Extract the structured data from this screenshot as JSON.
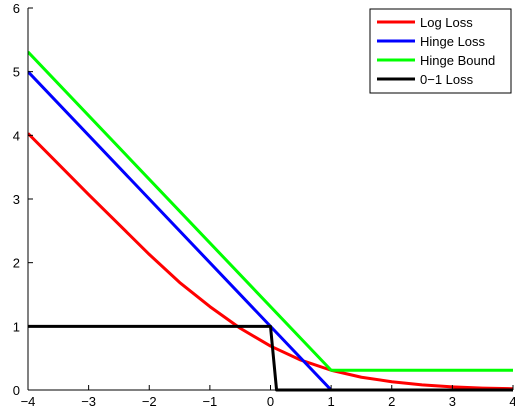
{
  "chart_data": {
    "type": "line",
    "xlim": [
      -4,
      4
    ],
    "ylim": [
      0,
      6
    ],
    "xticks": [
      -4,
      -3,
      -2,
      -1,
      0,
      1,
      2,
      3,
      4
    ],
    "yticks": [
      0,
      1,
      2,
      3,
      4,
      5,
      6
    ],
    "xtick_labels": [
      "−4",
      "−3",
      "−2",
      "−1",
      "0",
      "1",
      "2",
      "3",
      "4"
    ],
    "ytick_labels": [
      "0",
      "1",
      "2",
      "3",
      "4",
      "5",
      "6"
    ],
    "title": "",
    "xlabel": "",
    "ylabel": "",
    "grid": false,
    "legend_position": "top-right",
    "series": [
      {
        "name": "Log Loss",
        "color": "#ff0000",
        "x": [
          -4,
          -3.5,
          -3,
          -2.5,
          -2,
          -1.5,
          -1,
          -0.5,
          0,
          0.5,
          1,
          1.5,
          2,
          2.5,
          3,
          3.5,
          4
        ],
        "y": [
          4.03,
          3.55,
          3.07,
          2.6,
          2.13,
          1.69,
          1.31,
          0.97,
          0.69,
          0.47,
          0.31,
          0.2,
          0.13,
          0.08,
          0.05,
          0.03,
          0.02
        ]
      },
      {
        "name": "Hinge Loss",
        "color": "#0000ff",
        "x": [
          -4,
          1
        ],
        "y": [
          5,
          0
        ]
      },
      {
        "name": "Hinge Bound",
        "color": "#00ff00",
        "x": [
          -4,
          1,
          4
        ],
        "y": [
          5.31,
          0.31,
          0.31
        ]
      },
      {
        "name": "0−1 Loss",
        "color": "#000000",
        "x": [
          -4,
          0,
          0.1,
          4
        ],
        "y": [
          1,
          1,
          0,
          0
        ]
      }
    ]
  }
}
